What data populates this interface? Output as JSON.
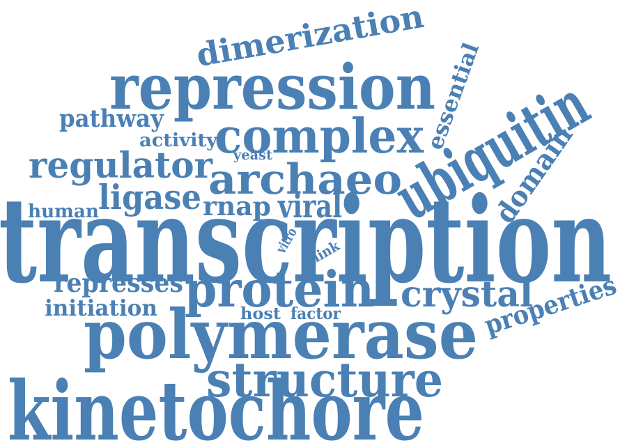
{
  "word_cloud": {
    "color": "#4a80b4",
    "background": "#ffffff",
    "words": [
      {
        "text": "transcription"
      },
      {
        "text": "kinetochore"
      },
      {
        "text": "polymerase"
      },
      {
        "text": "repression"
      },
      {
        "text": "ubiquitin"
      },
      {
        "text": "complex"
      },
      {
        "text": "protein"
      },
      {
        "text": "structure"
      },
      {
        "text": "archaeo"
      },
      {
        "text": "regulator"
      },
      {
        "text": "dimerization"
      },
      {
        "text": "crystal"
      },
      {
        "text": "ligase"
      },
      {
        "text": "properties"
      },
      {
        "text": "domain"
      },
      {
        "text": "viral"
      },
      {
        "text": "rnap"
      },
      {
        "text": "represses"
      },
      {
        "text": "essential"
      },
      {
        "text": "initiation"
      },
      {
        "text": "pathway"
      },
      {
        "text": "activity"
      },
      {
        "text": "human"
      },
      {
        "text": "host"
      },
      {
        "text": "factor"
      },
      {
        "text": "yeast"
      },
      {
        "text": "vitro"
      },
      {
        "text": "link"
      }
    ]
  }
}
